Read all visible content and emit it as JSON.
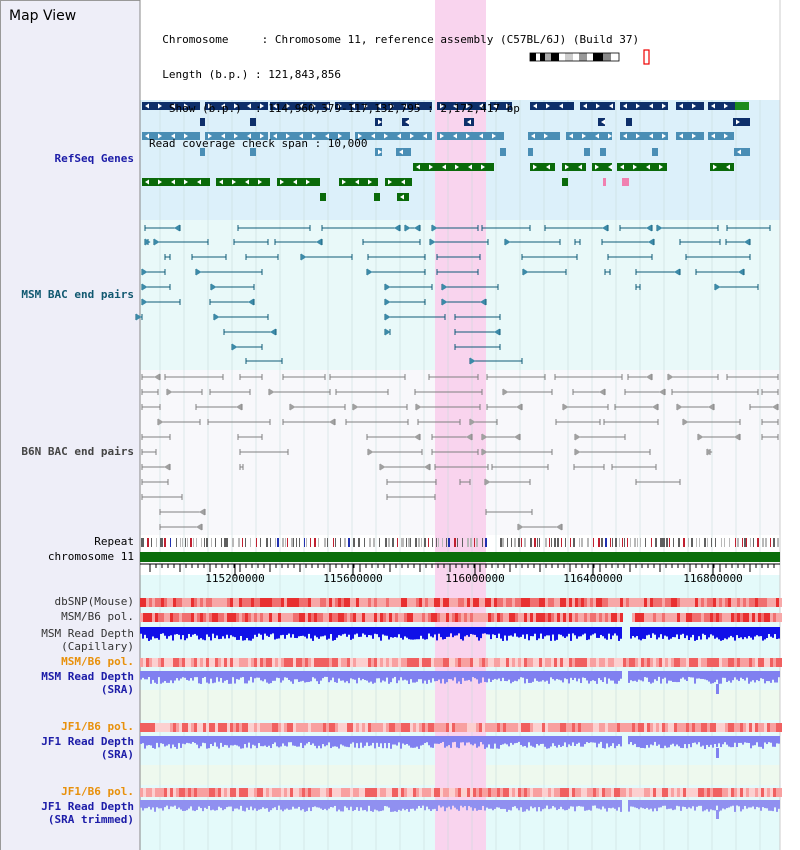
{
  "header": {
    "title": "Map View",
    "info_lines": [
      "  Chromosome     : Chromosome 11, reference assembly (C57BL/6J) (Build 37)",
      "  Length (b.p.) : 121,843,856",
      "   Show (b.p.)  : 114,960,379-117,132,795 : 2,172,417 bp",
      "Read coverage check span : 10,000"
    ]
  },
  "tracks": {
    "refseq": "RefSeq Genes",
    "msm_bac": "MSM BAC end pairs",
    "b6n_bac": "B6N BAC end pairs",
    "repeat": "Repeat",
    "chromosome": "chromosome 11",
    "dbsnp": "dbSNP(Mouse)",
    "msm_b6_pol_1": "MSM/B6 pol.",
    "msm_depth_cap_1": "MSM Read Depth",
    "msm_depth_cap_2": "(Capillary)",
    "msm_b6_pol_2": "MSM/B6 pol.",
    "msm_depth_sra_1": "MSM Read Depth",
    "msm_depth_sra_2": "(SRA)",
    "jf1_b6_pol_1": "JF1/B6 pol.",
    "jf1_depth_sra_1": "JF1 Read Depth",
    "jf1_depth_sra_2": "(SRA)",
    "jf1_b6_pol_2": "JF1/B6 pol.",
    "jf1_depth_trim_1": "JF1 Read Depth",
    "jf1_depth_trim_2": "(SRA trimmed)"
  },
  "ruler": {
    "ticks": [
      "115200000",
      "115600000",
      "116000000",
      "116400000",
      "116800000"
    ]
  },
  "colors": {
    "highlight": "#f9d4ee",
    "refseq_bg": "#dcf0fa",
    "bac_bg": "#e9f9f9",
    "gene_navy": "#0e2f6a",
    "gene_steel": "#4a8eb5",
    "gene_green": "#0a6a0a",
    "msm_pair": "#0e5a78",
    "b6n_pair": "#808080",
    "chromosome": "#0b6e0b",
    "snp": "#e84848",
    "depth_capillary": "#1010e8",
    "depth_sra": "#8080f0"
  }
}
